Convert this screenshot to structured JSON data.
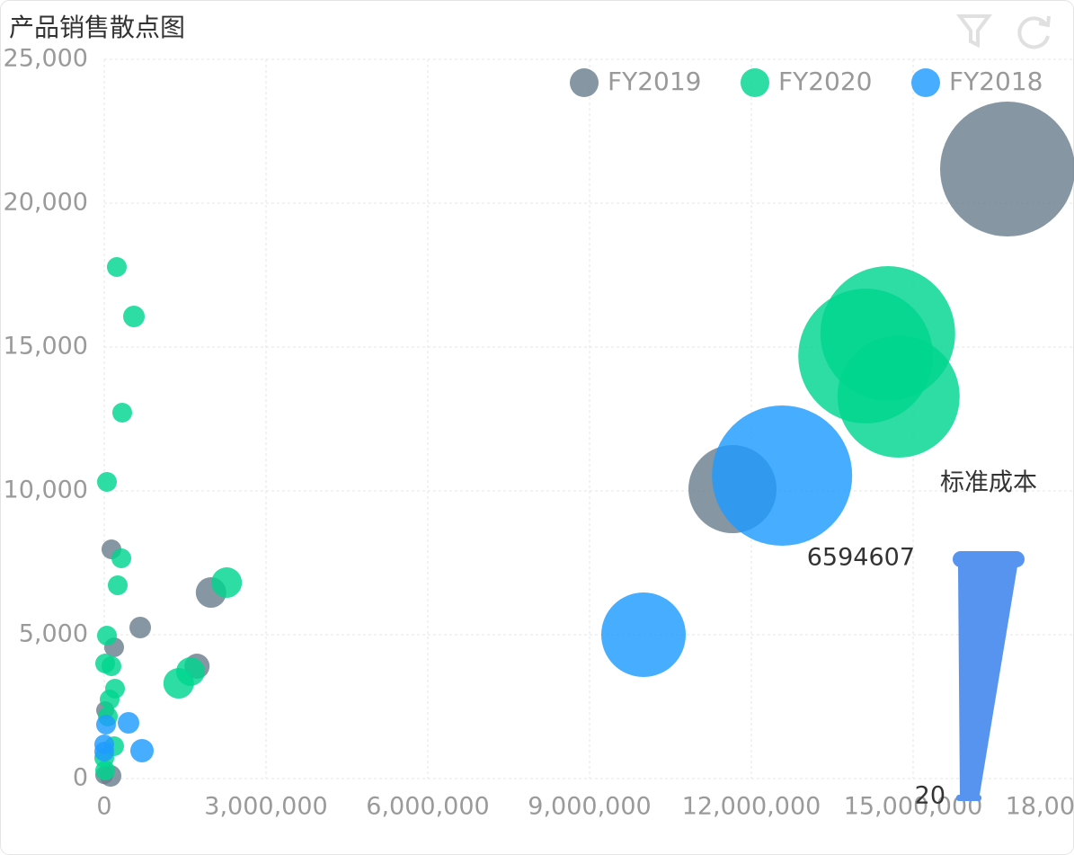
{
  "chart_data": {
    "type": "scatter",
    "title": "产品销售散点图",
    "xlim": [
      0,
      18000000
    ],
    "xticks": [
      0,
      {
        "value": 3000000,
        "label": "3,000,000"
      },
      {
        "value": 6000000,
        "label": "6,000,000"
      },
      {
        "value": 9000000,
        "label": "9,000,000"
      },
      {
        "value": 12000000,
        "label": "12,000,000"
      },
      {
        "value": 15000000,
        "label": "15,000,000"
      },
      {
        "value": 18000000,
        "label": "18,000,000"
      }
    ],
    "ylim": [
      0,
      25000
    ],
    "yticks": [
      0,
      {
        "value": 5000,
        "label": "5,000"
      },
      {
        "value": 10000,
        "label": "10,000"
      },
      {
        "value": 15000,
        "label": "15,000"
      },
      {
        "value": 20000,
        "label": "20,000"
      },
      {
        "value": 25000,
        "label": "25,000"
      }
    ],
    "grid": true,
    "legend": "top-right",
    "visual_map": {
      "title": "标准成本",
      "min": 20,
      "max": 6594607,
      "color": "#5794f0"
    },
    "series": [
      {
        "name": "FY2019",
        "color": "#6b7f8d",
        "x": [
          16750000,
          11650000,
          133000,
          1980000,
          667000,
          1720000,
          183000,
          17000,
          117000,
          0
        ],
        "values": [
          21187,
          10062,
          7969,
          6469,
          5250,
          3906,
          4562,
          2375,
          94,
          120
        ],
        "sizes": [
          6136000,
          3755000,
          275000,
          824000,
          366000,
          550000,
          275000,
          183000,
          366000,
          183000
        ]
      },
      {
        "name": "FY2020",
        "color": "#00d68f",
        "x": [
          14530000,
          14120000,
          14730000,
          233000,
          550000,
          333000,
          50000,
          317000,
          250000,
          2270000,
          1380000,
          1600000,
          50000,
          17000,
          133000,
          200000,
          100000,
          67000,
          183000,
          0,
          17000
        ],
        "values": [
          15469,
          14687,
          13281,
          17781,
          16062,
          12719,
          10312,
          7656,
          6719,
          6812,
          3312,
          3719,
          4969,
          4000,
          3906,
          3125,
          2750,
          2156,
          1125,
          719,
          281
        ],
        "sizes": [
          6136000,
          6136000,
          5495000,
          275000,
          366000,
          275000,
          275000,
          275000,
          275000,
          824000,
          824000,
          733000,
          275000,
          275000,
          275000,
          275000,
          275000,
          275000,
          275000,
          275000,
          275000
        ]
      },
      {
        "name": "FY2018",
        "color": "#1e9bff",
        "x": [
          12570000,
          10000000,
          450000,
          700000,
          33000,
          0,
          0
        ],
        "values": [
          10531,
          5000,
          1937,
          969,
          1875,
          1187,
          937
        ],
        "sizes": [
          6411000,
          3572000,
          366000,
          458000,
          275000,
          275000,
          275000
        ]
      }
    ]
  }
}
